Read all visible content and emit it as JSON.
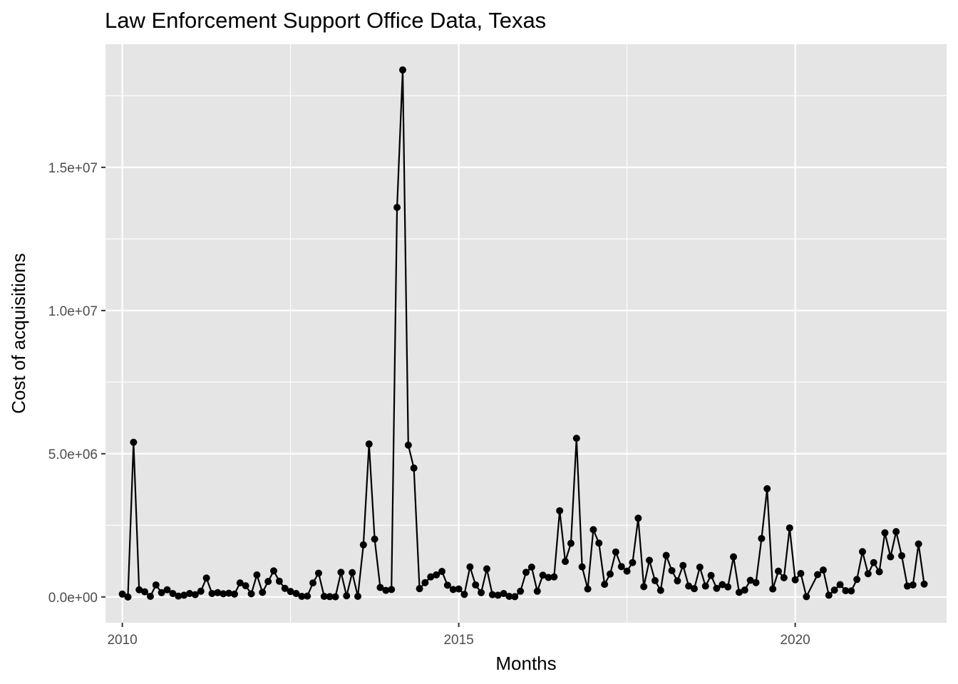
{
  "chart_data": {
    "type": "line",
    "title": "Law Enforcement Support Office Data, Texas",
    "xlabel": "Months",
    "ylabel": "Cost of acquisitions",
    "xlim": [
      2009.75,
      2022.25
    ],
    "ylim": [
      -900000,
      19300000
    ],
    "x_ticks": [
      2010,
      2015,
      2020
    ],
    "x_tick_labels": [
      "2010",
      "2015",
      "2020"
    ],
    "y_ticks": [
      0,
      5000000,
      10000000,
      15000000
    ],
    "y_tick_labels": [
      "0.0e+00",
      "5.0e+06",
      "1.0e+07",
      "1.5e+07"
    ],
    "grid": true,
    "panel_background": "#e5e5e5",
    "grid_color": "#ffffff",
    "line_color": "#000000",
    "point_color": "#000000",
    "series": [
      {
        "points": [
          [
            2010.0,
            100000
          ],
          [
            2010.083,
            0
          ],
          [
            2010.167,
            5400000
          ],
          [
            2010.25,
            250000
          ],
          [
            2010.333,
            180000
          ],
          [
            2010.417,
            20000
          ],
          [
            2010.5,
            420000
          ],
          [
            2010.583,
            150000
          ],
          [
            2010.667,
            250000
          ],
          [
            2010.75,
            120000
          ],
          [
            2010.833,
            30000
          ],
          [
            2010.917,
            60000
          ],
          [
            2011.0,
            120000
          ],
          [
            2011.083,
            80000
          ],
          [
            2011.167,
            200000
          ],
          [
            2011.25,
            660000
          ],
          [
            2011.333,
            120000
          ],
          [
            2011.417,
            150000
          ],
          [
            2011.5,
            110000
          ],
          [
            2011.583,
            130000
          ],
          [
            2011.667,
            100000
          ],
          [
            2011.75,
            490000
          ],
          [
            2011.833,
            390000
          ],
          [
            2011.917,
            110000
          ],
          [
            2012.0,
            770000
          ],
          [
            2012.083,
            160000
          ],
          [
            2012.167,
            540000
          ],
          [
            2012.25,
            910000
          ],
          [
            2012.333,
            550000
          ],
          [
            2012.417,
            300000
          ],
          [
            2012.5,
            190000
          ],
          [
            2012.583,
            120000
          ],
          [
            2012.667,
            20000
          ],
          [
            2012.75,
            30000
          ],
          [
            2012.833,
            490000
          ],
          [
            2012.917,
            830000
          ],
          [
            2013.0,
            20000
          ],
          [
            2013.083,
            10000
          ],
          [
            2013.167,
            5000
          ],
          [
            2013.25,
            860000
          ],
          [
            2013.333,
            40000
          ],
          [
            2013.417,
            850000
          ],
          [
            2013.5,
            20000
          ],
          [
            2013.583,
            1820000
          ],
          [
            2013.667,
            5340000
          ],
          [
            2013.75,
            2020000
          ],
          [
            2013.833,
            330000
          ],
          [
            2013.917,
            230000
          ],
          [
            2014.0,
            260000
          ],
          [
            2014.083,
            13600000
          ],
          [
            2014.167,
            18400000
          ],
          [
            2014.25,
            5300000
          ],
          [
            2014.333,
            4500000
          ],
          [
            2014.417,
            290000
          ],
          [
            2014.5,
            500000
          ],
          [
            2014.583,
            700000
          ],
          [
            2014.667,
            770000
          ],
          [
            2014.75,
            890000
          ],
          [
            2014.833,
            410000
          ],
          [
            2014.917,
            260000
          ],
          [
            2015.0,
            280000
          ],
          [
            2015.083,
            90000
          ],
          [
            2015.167,
            1050000
          ],
          [
            2015.25,
            420000
          ],
          [
            2015.333,
            150000
          ],
          [
            2015.417,
            980000
          ],
          [
            2015.5,
            80000
          ],
          [
            2015.583,
            60000
          ],
          [
            2015.667,
            120000
          ],
          [
            2015.75,
            20000
          ],
          [
            2015.833,
            10000
          ],
          [
            2015.917,
            200000
          ],
          [
            2016.0,
            860000
          ],
          [
            2016.083,
            1040000
          ],
          [
            2016.167,
            200000
          ],
          [
            2016.25,
            760000
          ],
          [
            2016.333,
            680000
          ],
          [
            2016.417,
            700000
          ],
          [
            2016.5,
            3010000
          ],
          [
            2016.583,
            1240000
          ],
          [
            2016.667,
            1870000
          ],
          [
            2016.75,
            5540000
          ],
          [
            2016.833,
            1050000
          ],
          [
            2016.917,
            280000
          ],
          [
            2017.0,
            2350000
          ],
          [
            2017.083,
            1880000
          ],
          [
            2017.167,
            440000
          ],
          [
            2017.25,
            800000
          ],
          [
            2017.333,
            1570000
          ],
          [
            2017.417,
            1060000
          ],
          [
            2017.5,
            900000
          ],
          [
            2017.583,
            1200000
          ],
          [
            2017.667,
            2750000
          ],
          [
            2017.75,
            360000
          ],
          [
            2017.833,
            1280000
          ],
          [
            2017.917,
            570000
          ],
          [
            2018.0,
            230000
          ],
          [
            2018.083,
            1450000
          ],
          [
            2018.167,
            920000
          ],
          [
            2018.25,
            560000
          ],
          [
            2018.333,
            1100000
          ],
          [
            2018.417,
            380000
          ],
          [
            2018.5,
            290000
          ],
          [
            2018.583,
            1040000
          ],
          [
            2018.667,
            380000
          ],
          [
            2018.75,
            750000
          ],
          [
            2018.833,
            300000
          ],
          [
            2018.917,
            430000
          ],
          [
            2019.0,
            350000
          ],
          [
            2019.083,
            1400000
          ],
          [
            2019.167,
            160000
          ],
          [
            2019.25,
            240000
          ],
          [
            2019.333,
            580000
          ],
          [
            2019.417,
            500000
          ],
          [
            2019.5,
            2040000
          ],
          [
            2019.583,
            3780000
          ],
          [
            2019.667,
            280000
          ],
          [
            2019.75,
            900000
          ],
          [
            2019.833,
            670000
          ],
          [
            2019.917,
            2410000
          ],
          [
            2020.0,
            600000
          ],
          [
            2020.083,
            820000
          ],
          [
            2020.167,
            10000
          ],
          [
            2020.333,
            780000
          ],
          [
            2020.417,
            940000
          ],
          [
            2020.5,
            60000
          ],
          [
            2020.583,
            240000
          ],
          [
            2020.667,
            430000
          ],
          [
            2020.75,
            220000
          ],
          [
            2020.833,
            210000
          ],
          [
            2020.917,
            610000
          ],
          [
            2021.0,
            1580000
          ],
          [
            2021.083,
            810000
          ],
          [
            2021.167,
            1200000
          ],
          [
            2021.25,
            880000
          ],
          [
            2021.333,
            2240000
          ],
          [
            2021.417,
            1400000
          ],
          [
            2021.5,
            2280000
          ],
          [
            2021.583,
            1440000
          ],
          [
            2021.667,
            380000
          ],
          [
            2021.75,
            420000
          ],
          [
            2021.833,
            1850000
          ],
          [
            2021.917,
            450000
          ]
        ]
      }
    ]
  }
}
